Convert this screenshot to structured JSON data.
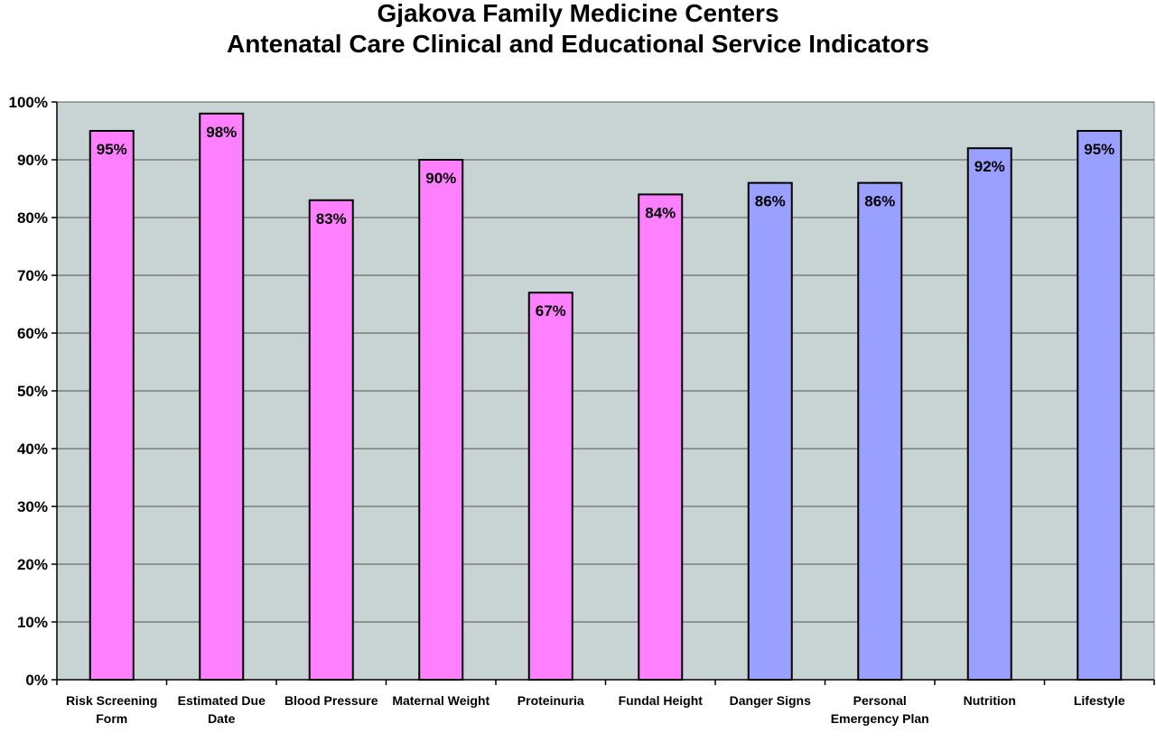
{
  "chart_data": {
    "type": "bar",
    "title": "Gjakova Family Medicine Centers\nAntenatal Care Clinical and Educational Service Indicators",
    "xlabel": "",
    "ylabel": "",
    "categories": [
      "Risk Screening Form",
      "Estimated Due Date",
      "Blood Pressure",
      "Maternal Weight",
      "Proteinuria",
      "Fundal Height",
      "Danger Signs",
      "Personal Emergency Plan",
      "Nutrition",
      "Lifestyle"
    ],
    "values": [
      95,
      98,
      83,
      90,
      67,
      84,
      86,
      86,
      92,
      95
    ],
    "value_labels": [
      "95%",
      "98%",
      "83%",
      "90%",
      "67%",
      "84%",
      "86%",
      "86%",
      "92%",
      "95%"
    ],
    "ylim": [
      0,
      100
    ],
    "yticks": [
      0,
      10,
      20,
      30,
      40,
      50,
      60,
      70,
      80,
      90,
      100
    ],
    "ytick_labels": [
      "0%",
      "10%",
      "20%",
      "30%",
      "40%",
      "50%",
      "60%",
      "70%",
      "80%",
      "90%",
      "100%"
    ],
    "grid": true,
    "legend": "none",
    "bar_colors": [
      "#ff80ff",
      "#ff80ff",
      "#ff80ff",
      "#ff80ff",
      "#ff80ff",
      "#ff80ff",
      "#99a0ff",
      "#99a0ff",
      "#99a0ff",
      "#99a0ff"
    ],
    "plot_background": "#c8d4d4",
    "gridline_color": "#555555"
  }
}
